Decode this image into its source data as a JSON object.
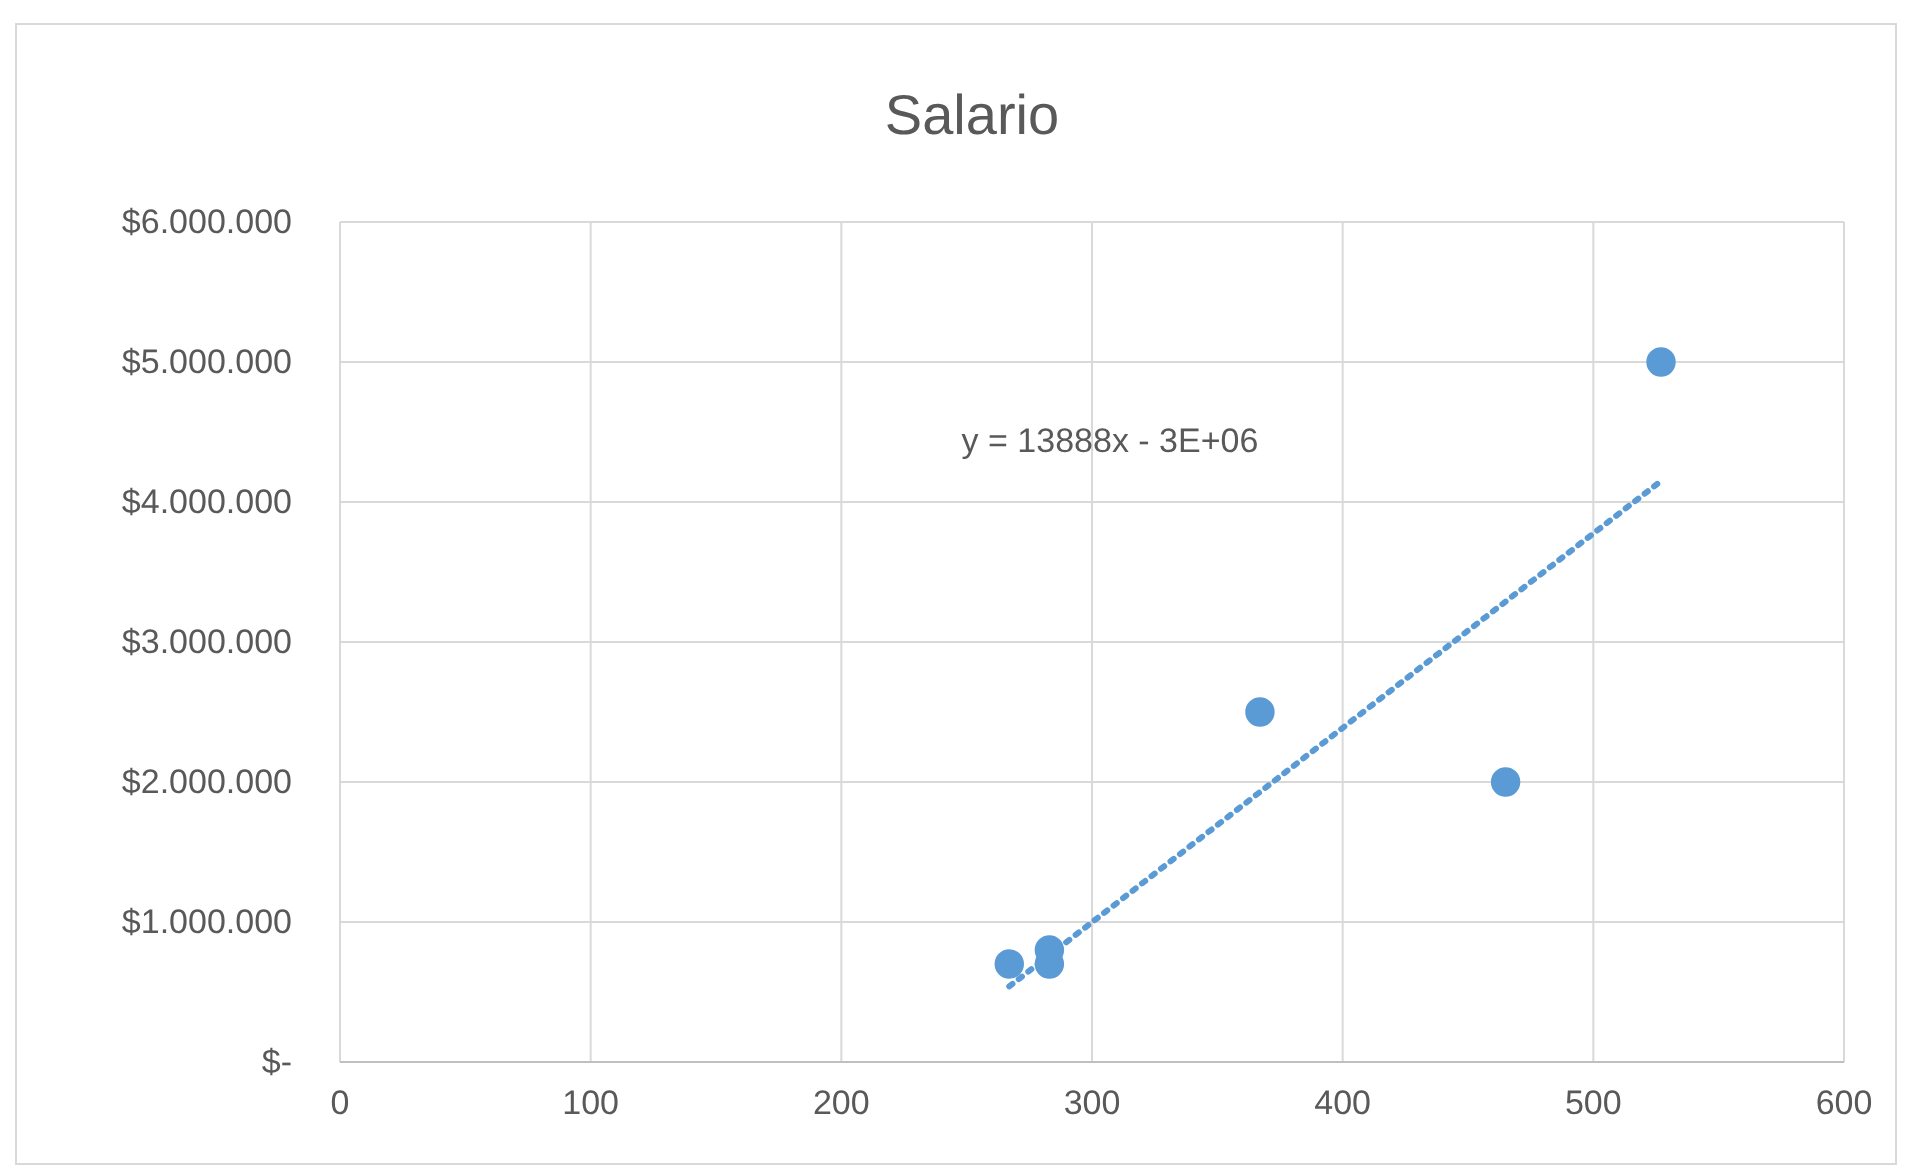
{
  "chart_data": {
    "type": "scatter",
    "title": "Salario",
    "marker": "circle",
    "grid": true,
    "xlim": [
      0,
      600
    ],
    "xticks": [
      0,
      100,
      200,
      300,
      400,
      500,
      600
    ],
    "ylim": [
      0,
      6000000
    ],
    "yticks": [
      {
        "value": 0,
        "label": "$-"
      },
      {
        "value": 1000000,
        "label": "$1.000.000"
      },
      {
        "value": 2000000,
        "label": "$2.000.000"
      },
      {
        "value": 3000000,
        "label": "$3.000.000"
      },
      {
        "value": 4000000,
        "label": "$4.000.000"
      },
      {
        "value": 5000000,
        "label": "$5.000.000"
      },
      {
        "value": 6000000,
        "label": "$6.000.000"
      }
    ],
    "series": [
      {
        "color": "#5b9bd5",
        "x": [
          267,
          283,
          283,
          367,
          465,
          527
        ],
        "values": [
          700000,
          800000,
          700000,
          2500000,
          2000000,
          5000000
        ]
      },
      {
        "type": "line",
        "color": "#5b9bd5",
        "line_style": "dotted",
        "marker": "none",
        "x": [
          267,
          527
        ],
        "values": [
          540000,
          4150000
        ]
      }
    ],
    "annotations": [
      "y = 13888x - 3E+06"
    ]
  }
}
